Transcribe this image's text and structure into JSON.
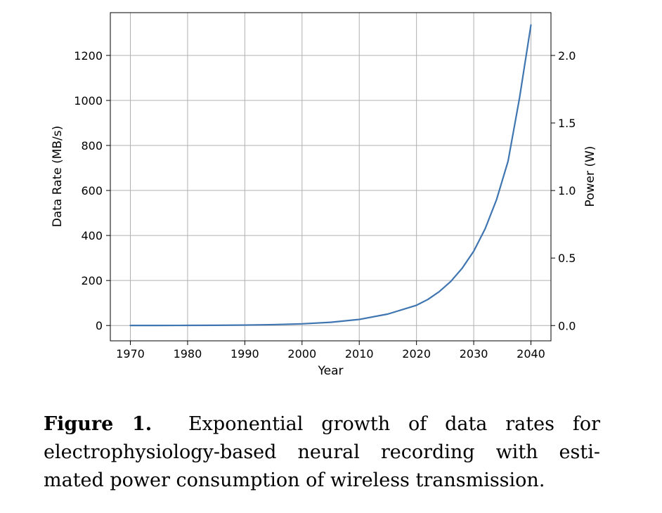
{
  "chart_data": {
    "type": "line",
    "title": "",
    "xlabel": "Year",
    "ylabel": "Data Rate (MB/s)",
    "y2label": "Power (W)",
    "xlim": [
      1966.5,
      2043.5
    ],
    "ylim": [
      -68,
      1390
    ],
    "y2lim": [
      -0.113,
      2.317
    ],
    "x_ticks": [
      1970,
      1980,
      1990,
      2000,
      2010,
      2020,
      2030,
      2040
    ],
    "y_ticks": [
      0,
      200,
      400,
      600,
      800,
      1000,
      1200
    ],
    "y2_ticks": [
      "0.0",
      "0.5",
      "1.0",
      "1.5",
      "2.0"
    ],
    "grid": true,
    "line_color": "#3f75b0",
    "series": [
      {
        "x": [
          1970,
          1975,
          1980,
          1985,
          1990,
          1995,
          2000,
          2005,
          2010,
          2015,
          2020,
          2022,
          2024,
          2026,
          2028,
          2030,
          2032,
          2034,
          2036,
          2038,
          2040
        ],
        "y": [
          0.2,
          0.3,
          0.6,
          1.1,
          2.1,
          4.0,
          7.6,
          14.4,
          27,
          51,
          90,
          116,
          151,
          196,
          255,
          330,
          430,
          560,
          730,
          1010,
          1335
        ]
      }
    ]
  },
  "caption": {
    "label": "Figure 1.",
    "text": "Exponential growth of data rates for electrophysiology-based neural recording with esti- mated power consumption of wireless transmission."
  }
}
